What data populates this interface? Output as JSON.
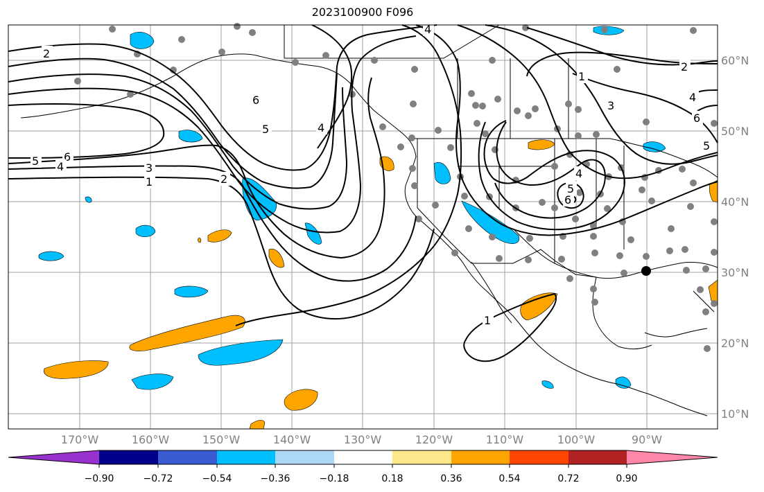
{
  "title": "2023100900 F096",
  "map": {
    "lon_labels": [
      "170°W",
      "160°W",
      "150°W",
      "140°W",
      "130°W",
      "120°W",
      "110°W",
      "100°W",
      "90°W"
    ],
    "lat_labels": [
      "60°N",
      "50°N",
      "40°N",
      "30°N",
      "20°N",
      "10°N"
    ],
    "contour_labels": [
      "2",
      "6",
      "5",
      "4",
      "4",
      "5",
      "6",
      "4",
      "3",
      "1",
      "2",
      "1",
      "2",
      "4",
      "3",
      "6",
      "5",
      "4",
      "5",
      "6",
      "1",
      "1"
    ]
  },
  "colorbar": {
    "colors": [
      "#9932cc",
      "#00008b",
      "#3a5bd1",
      "#00bfff",
      "#add8f5",
      "#ffffff",
      "#fce88a",
      "#ffa500",
      "#ff4500",
      "#b22222",
      "#ff88aa"
    ],
    "tick_labels": [
      "−0.90",
      "−0.72",
      "−0.54",
      "−0.36",
      "−0.18",
      "0.18",
      "0.36",
      "0.54",
      "0.72",
      "0.90"
    ]
  },
  "colors": {
    "negative_fill": "#00bfff",
    "positive_fill": "#ffa500",
    "gridline": "#a0a0a0",
    "station_dot": "#808080"
  }
}
